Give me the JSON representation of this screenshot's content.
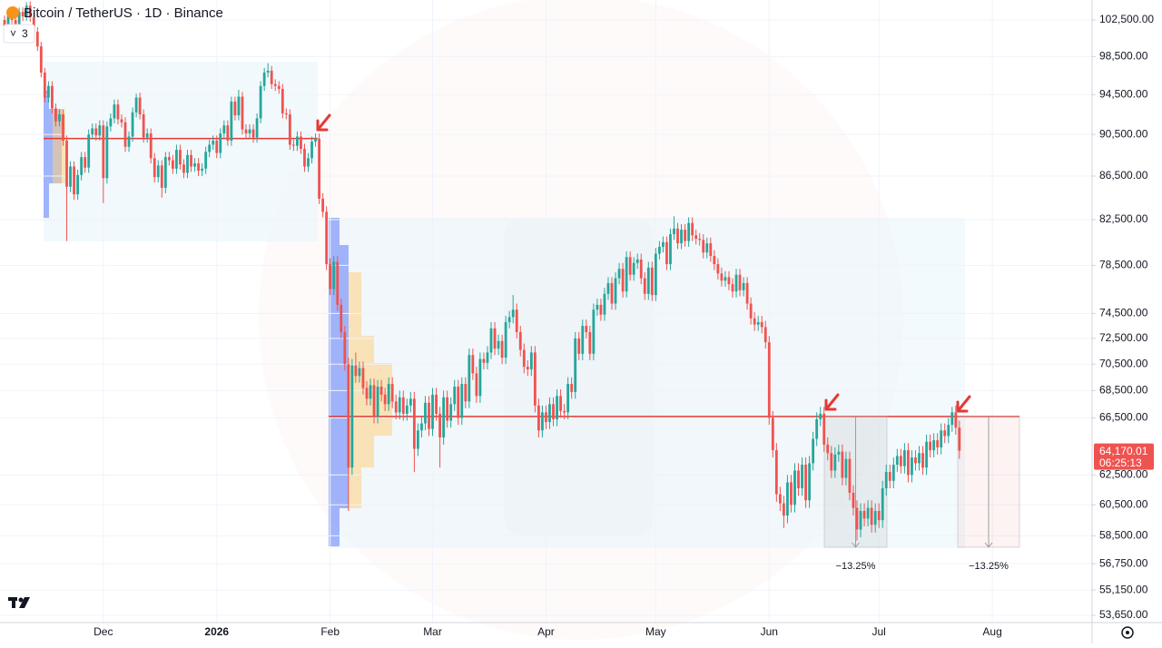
{
  "chart_data": {
    "type": "candlestick",
    "title": "Bitcoin / TetherUS · 1D · Binance",
    "badge": "3",
    "log": true,
    "up_color": "#26a69a",
    "down_color": "#ef5350",
    "ylim": [
      53230,
      104750
    ],
    "yticks": [
      {
        "value": 102500,
        "label": "102,500.00"
      },
      {
        "value": 98500,
        "label": "98,500.00"
      },
      {
        "value": 94500,
        "label": "94,500.00"
      },
      {
        "value": 90500,
        "label": "90,500.00"
      },
      {
        "value": 86500,
        "label": "86,500.00"
      },
      {
        "value": 82500,
        "label": "82,500.00"
      },
      {
        "value": 78500,
        "label": "78,500.00"
      },
      {
        "value": 74500,
        "label": "74,500.00"
      },
      {
        "value": 72500,
        "label": "72,500.00"
      },
      {
        "value": 70500,
        "label": "70,500.00"
      },
      {
        "value": 68500,
        "label": "68,500.00"
      },
      {
        "value": 66500,
        "label": "66,500.00"
      },
      {
        "value": 62500,
        "label": "62,500.00"
      },
      {
        "value": 60500,
        "label": "60,500.00"
      },
      {
        "value": 58500,
        "label": "58,500.00"
      },
      {
        "value": 56750,
        "label": "56,750.00"
      },
      {
        "value": 55150,
        "label": "55,150.00"
      },
      {
        "value": 53650,
        "label": "53,650.00"
      }
    ],
    "categories": [
      null,
      null,
      null,
      null,
      null,
      null,
      null,
      null,
      null,
      null,
      null,
      null,
      null,
      null,
      null,
      null,
      null,
      null,
      null,
      null,
      null,
      null,
      null,
      null,
      null,
      null,
      null,
      "Dec",
      null,
      null,
      null,
      null,
      null,
      null,
      null,
      null,
      null,
      null,
      null,
      null,
      null,
      null,
      null,
      null,
      null,
      null,
      null,
      null,
      null,
      null,
      null,
      null,
      null,
      null,
      null,
      null,
      null,
      null,
      "2026",
      null,
      null,
      null,
      null,
      null,
      null,
      null,
      null,
      null,
      null,
      null,
      null,
      null,
      null,
      null,
      null,
      null,
      null,
      null,
      null,
      null,
      null,
      null,
      null,
      null,
      null,
      null,
      null,
      null,
      null,
      "Feb",
      null,
      null,
      null,
      null,
      null,
      null,
      null,
      null,
      null,
      null,
      null,
      null,
      null,
      null,
      null,
      null,
      null,
      null,
      null,
      null,
      null,
      null,
      null,
      null,
      null,
      null,
      null,
      "Mar",
      null,
      null,
      null,
      null,
      null,
      null,
      null,
      null,
      null,
      null,
      null,
      null,
      null,
      null,
      null,
      null,
      null,
      null,
      null,
      null,
      null,
      null,
      null,
      null,
      null,
      null,
      null,
      null,
      null,
      null,
      "Apr",
      null,
      null,
      null,
      null,
      null,
      null,
      null,
      null,
      null,
      null,
      null,
      null,
      null,
      null,
      null,
      null,
      null,
      null,
      null,
      null,
      null,
      null,
      null,
      null,
      null,
      null,
      null,
      null,
      null,
      "May",
      null,
      null,
      null,
      null,
      null,
      null,
      null,
      null,
      null,
      null,
      null,
      null,
      null,
      null,
      null,
      null,
      null,
      null,
      null,
      null,
      null,
      null,
      null,
      null,
      null,
      null,
      null,
      null,
      null,
      null,
      "Jun",
      null,
      null,
      null,
      null,
      null,
      null,
      null,
      null,
      null,
      null,
      null,
      null,
      null,
      null,
      null,
      null,
      null,
      null,
      null,
      null,
      null,
      null,
      null,
      null,
      null,
      null,
      null,
      null,
      null,
      "Jul",
      null,
      null,
      null,
      null,
      null,
      null,
      null,
      null,
      null,
      null,
      null,
      null,
      null,
      null,
      null,
      null,
      null,
      null,
      null,
      null,
      null,
      null,
      null,
      null,
      null,
      null,
      null,
      null,
      null,
      null,
      "Aug"
    ],
    "open": [
      102500,
      101800,
      103100,
      102500,
      101600,
      103400,
      102900,
      104100,
      102800,
      101200,
      99600,
      96800,
      94200,
      95400,
      93100,
      91800,
      92500,
      89900,
      85500,
      87400,
      84800,
      86600,
      88300,
      87300,
      90500,
      91100,
      90400,
      91400,
      86300,
      91300,
      92100,
      93500,
      92000,
      91700,
      89300,
      90300,
      92700,
      94200,
      92500,
      90200,
      90600,
      88200,
      86400,
      87500,
      85400,
      88300,
      88000,
      87200,
      89000,
      87600,
      86800,
      88500,
      87400,
      87700,
      87000,
      87200,
      88800,
      89500,
      89900,
      88700,
      90600,
      91400,
      89900,
      93800,
      92400,
      94300,
      91000,
      90600,
      91000,
      90200,
      92100,
      95400,
      96800,
      97000,
      95600,
      95400,
      95100,
      92600,
      92500,
      89500,
      89400,
      90300,
      89100,
      87400,
      88200,
      89800,
      90100,
      84400,
      83200,
      78600,
      76500,
      78800,
      75200,
      73000,
      70500,
      63000,
      70400,
      69600,
      70200,
      68700,
      67900,
      68900,
      66600,
      68800,
      68200,
      67500,
      69000,
      67700,
      66900,
      68000,
      66800,
      67400,
      67900,
      64300,
      65600,
      66100,
      67600,
      65700,
      68200,
      66800,
      65100,
      68000,
      66300,
      67500,
      68800,
      66500,
      69000,
      67700,
      71200,
      69800,
      68100,
      70900,
      70600,
      71400,
      73300,
      71700,
      72300,
      71000,
      73800,
      74200,
      74800,
      73000,
      71600,
      70300,
      70100,
      71400,
      67400,
      65600,
      66900,
      66200,
      67500,
      66400,
      68100,
      67000,
      66900,
      69000,
      68400,
      72500,
      71300,
      73500,
      73000,
      71300,
      74800,
      75200,
      74400,
      76100,
      77000,
      75300,
      77400,
      78200,
      76300,
      79200,
      77700,
      78700,
      79000,
      77400,
      76100,
      78300,
      76000,
      79500,
      80100,
      80500,
      78600,
      81200,
      81700,
      80400,
      81600,
      80600,
      82200,
      81100,
      80800,
      80700,
      79600,
      80400,
      79300,
      78600,
      77800,
      77200,
      77500,
      76900,
      76300,
      77700,
      76400,
      77000,
      75300,
      74100,
      73600,
      73800,
      73400,
      72200,
      66500,
      64200,
      61200,
      60600,
      59800,
      62000,
      60500,
      62800,
      61600,
      63200,
      60800,
      63300,
      65000,
      66400,
      66800,
      64600,
      64000,
      62800,
      63900,
      64100,
      62300,
      63600,
      61300,
      60300,
      58900,
      60100,
      59600,
      60300,
      59200,
      60100,
      59500,
      61600,
      62700,
      62100,
      63200,
      63800,
      63100,
      64200,
      62500,
      63700,
      63300,
      64000,
      63000,
      64800,
      64200,
      64900,
      64400,
      65600,
      65200,
      66000,
      66900,
      65800,
      null,
      null,
      null,
      null,
      null,
      null,
      null,
      null,
      null
    ],
    "high": [
      103000,
      103600,
      103600,
      103000,
      103900,
      103900,
      104500,
      104600,
      103300,
      101700,
      100100,
      97300,
      95900,
      95900,
      93600,
      93000,
      93000,
      90400,
      87900,
      87900,
      87100,
      88800,
      88800,
      91000,
      91600,
      91600,
      91900,
      91900,
      91800,
      92600,
      94000,
      94000,
      92500,
      92200,
      90800,
      93200,
      94600,
      94700,
      93000,
      91100,
      91100,
      88700,
      88000,
      88000,
      88800,
      88800,
      88500,
      89500,
      89500,
      88100,
      89000,
      89000,
      88200,
      88200,
      87700,
      89300,
      90000,
      90400,
      90400,
      91100,
      91900,
      91900,
      94300,
      94300,
      95000,
      94800,
      91500,
      91500,
      91500,
      92600,
      95900,
      97300,
      97800,
      97500,
      96100,
      95900,
      95600,
      93100,
      93000,
      90000,
      90800,
      90800,
      89600,
      88700,
      90300,
      90600,
      90600,
      84900,
      83700,
      79100,
      79300,
      79300,
      75700,
      73500,
      71000,
      70900,
      71400,
      70700,
      70700,
      69200,
      69400,
      69400,
      69300,
      69300,
      68700,
      69500,
      69500,
      68200,
      68500,
      68500,
      67900,
      68400,
      68400,
      66100,
      66600,
      68100,
      68100,
      68700,
      68700,
      67300,
      68500,
      68500,
      68000,
      69300,
      69300,
      69500,
      69500,
      71700,
      71700,
      70300,
      71400,
      71400,
      71900,
      73800,
      73800,
      72800,
      72800,
      74300,
      74700,
      76000,
      75300,
      73500,
      72100,
      70800,
      71900,
      71900,
      67900,
      67400,
      67400,
      68000,
      68000,
      68600,
      68600,
      67500,
      69500,
      69500,
      73000,
      73000,
      74000,
      74000,
      73500,
      75300,
      75700,
      75700,
      76600,
      77500,
      77500,
      77900,
      78700,
      78700,
      79700,
      79700,
      79200,
      79500,
      79500,
      77900,
      78800,
      78800,
      80000,
      80600,
      81000,
      81000,
      81700,
      82800,
      82200,
      82100,
      82100,
      82700,
      82700,
      81600,
      81300,
      81200,
      80900,
      80900,
      79800,
      79100,
      78300,
      78000,
      78000,
      77400,
      78200,
      78200,
      77500,
      77500,
      75800,
      74600,
      74300,
      74300,
      73900,
      72700,
      67000,
      64700,
      61700,
      61100,
      62500,
      62500,
      63300,
      63300,
      63700,
      63700,
      63800,
      65500,
      66900,
      67300,
      67300,
      65100,
      64500,
      64400,
      64600,
      64600,
      64100,
      64100,
      61800,
      60800,
      60600,
      60600,
      60800,
      60800,
      60600,
      60600,
      62100,
      63200,
      63200,
      63700,
      64300,
      64300,
      64700,
      64700,
      64200,
      64200,
      64500,
      64500,
      65300,
      65300,
      65400,
      65400,
      66100,
      66100,
      66500,
      67300,
      67400,
      66300,
      null,
      null,
      null,
      null,
      null,
      null,
      null,
      null,
      null
    ],
    "low": [
      101300,
      101300,
      102000,
      101100,
      101100,
      102400,
      102400,
      102300,
      100700,
      99100,
      96300,
      93700,
      93700,
      92600,
      91300,
      91300,
      89400,
      80600,
      85000,
      84300,
      84300,
      86100,
      86800,
      86800,
      90000,
      89900,
      89900,
      84000,
      85800,
      90800,
      91600,
      91500,
      91200,
      88800,
      88800,
      89800,
      92200,
      92000,
      89700,
      89700,
      87700,
      85900,
      85900,
      84500,
      84900,
      87500,
      86700,
      86700,
      87100,
      86300,
      86300,
      86900,
      86900,
      86500,
      86500,
      86700,
      88300,
      89000,
      88200,
      88200,
      90100,
      89400,
      89400,
      91900,
      91900,
      90500,
      90100,
      90100,
      89700,
      89700,
      91600,
      94900,
      96300,
      95100,
      94900,
      94600,
      92100,
      92000,
      89000,
      88900,
      88900,
      88600,
      86900,
      86900,
      87700,
      89300,
      83900,
      82700,
      78100,
      76000,
      76000,
      74700,
      72500,
      70000,
      60100,
      62500,
      69100,
      69100,
      68200,
      67400,
      67400,
      66100,
      66100,
      67700,
      67000,
      67000,
      67200,
      66400,
      66400,
      66300,
      66300,
      66900,
      62700,
      63800,
      65100,
      65600,
      65200,
      65200,
      66300,
      63000,
      64600,
      65800,
      65800,
      67000,
      66000,
      66000,
      67200,
      67200,
      69300,
      67600,
      67600,
      70100,
      70100,
      70900,
      71200,
      71200,
      70500,
      70500,
      73300,
      73700,
      72500,
      71100,
      69800,
      69600,
      69600,
      66900,
      65100,
      65100,
      65700,
      65700,
      65900,
      65900,
      66500,
      66400,
      66400,
      67900,
      67900,
      70800,
      70800,
      72500,
      70800,
      70800,
      74300,
      73900,
      73900,
      75600,
      74800,
      74800,
      76900,
      75800,
      75800,
      77200,
      77200,
      78200,
      76900,
      75600,
      75600,
      75500,
      75500,
      79000,
      79600,
      78100,
      78100,
      80700,
      79900,
      79900,
      80100,
      80100,
      80600,
      80300,
      80200,
      79100,
      79100,
      78800,
      78100,
      77300,
      76700,
      76700,
      76400,
      75800,
      75800,
      75900,
      75900,
      74800,
      73600,
      73100,
      73100,
      72900,
      71700,
      66000,
      63700,
      60700,
      60100,
      59000,
      59300,
      60000,
      60000,
      61100,
      61100,
      60300,
      60300,
      62800,
      64500,
      65900,
      64100,
      63500,
      62300,
      62300,
      63400,
      61800,
      61800,
      60800,
      59800,
      58200,
      58400,
      59100,
      59100,
      58700,
      58700,
      59000,
      59000,
      61100,
      61600,
      61600,
      62700,
      62600,
      62600,
      62000,
      62000,
      62800,
      62800,
      62500,
      62500,
      63700,
      63700,
      63900,
      63900,
      64700,
      64700,
      65500,
      65300,
      63600,
      null,
      null,
      null,
      null,
      null,
      null,
      null,
      null,
      null
    ],
    "close": [
      101800,
      103100,
      102500,
      101600,
      103400,
      102900,
      104100,
      102800,
      101200,
      99600,
      96800,
      94200,
      95400,
      93100,
      91800,
      92500,
      89900,
      85500,
      87400,
      84800,
      86600,
      88300,
      87300,
      90500,
      91100,
      90400,
      91400,
      86300,
      91300,
      92100,
      93500,
      92000,
      91700,
      89300,
      90300,
      92700,
      94200,
      92500,
      90200,
      90600,
      88200,
      86400,
      87500,
      85400,
      88300,
      88000,
      87200,
      89000,
      87600,
      86800,
      88500,
      87400,
      87700,
      87000,
      87200,
      88800,
      89500,
      89900,
      88700,
      90600,
      91400,
      89900,
      93800,
      92400,
      94300,
      91000,
      90600,
      91000,
      90200,
      92100,
      95400,
      96800,
      97000,
      95600,
      95400,
      95100,
      92600,
      92500,
      89500,
      89400,
      90300,
      89100,
      87400,
      88200,
      89800,
      90100,
      84400,
      83200,
      78600,
      76500,
      78800,
      75200,
      73000,
      70500,
      63000,
      70400,
      69600,
      70200,
      68700,
      67900,
      68900,
      66600,
      68800,
      68200,
      67500,
      69000,
      67700,
      66900,
      68000,
      66800,
      67400,
      67900,
      64300,
      65600,
      66100,
      67600,
      65700,
      68200,
      66800,
      65100,
      68000,
      66300,
      67500,
      68800,
      66500,
      69000,
      67700,
      71200,
      69800,
      68100,
      70900,
      70600,
      71400,
      73300,
      71700,
      72300,
      71000,
      73800,
      74200,
      74800,
      73000,
      71600,
      70300,
      70100,
      71400,
      67400,
      65600,
      66900,
      66200,
      67500,
      66400,
      68100,
      67000,
      66900,
      69000,
      68400,
      72500,
      71300,
      73500,
      73000,
      71300,
      74800,
      75200,
      74400,
      76100,
      77000,
      75300,
      77400,
      78200,
      76300,
      79200,
      77700,
      78700,
      79000,
      77400,
      76100,
      78300,
      76000,
      79500,
      80100,
      80500,
      78600,
      81200,
      81700,
      80400,
      81600,
      80600,
      82200,
      81100,
      80800,
      80700,
      79600,
      80400,
      79300,
      78600,
      77800,
      77200,
      77500,
      76900,
      76300,
      77700,
      76400,
      77000,
      75300,
      74100,
      73600,
      73800,
      73400,
      72200,
      66500,
      64200,
      61200,
      60600,
      59800,
      62000,
      60500,
      62800,
      61600,
      63200,
      60800,
      63300,
      65000,
      66400,
      66800,
      64600,
      64000,
      62800,
      63900,
      64100,
      62300,
      63600,
      61300,
      60300,
      58900,
      60100,
      59600,
      60300,
      59200,
      60100,
      59500,
      61600,
      62700,
      62100,
      63200,
      63800,
      63100,
      64200,
      62500,
      63700,
      63300,
      64000,
      63000,
      64800,
      64200,
      64900,
      64400,
      65600,
      65200,
      66000,
      66900,
      65800,
      64170.01,
      null,
      null,
      null,
      null,
      null,
      null,
      null,
      null,
      null
    ],
    "last_price_label": "64,170.01",
    "countdown": "06:25:13",
    "hlines": [
      {
        "value": 90100,
        "color": "#e53935"
      },
      {
        "value": 66600,
        "color": "#e53935"
      }
    ],
    "measures": [
      {
        "from": 66600,
        "to": 57776,
        "value": -13.25,
        "label": "−13.25%"
      },
      {
        "from": 66600,
        "to": 57776,
        "value": -13.25,
        "label": "−13.25%"
      }
    ]
  }
}
